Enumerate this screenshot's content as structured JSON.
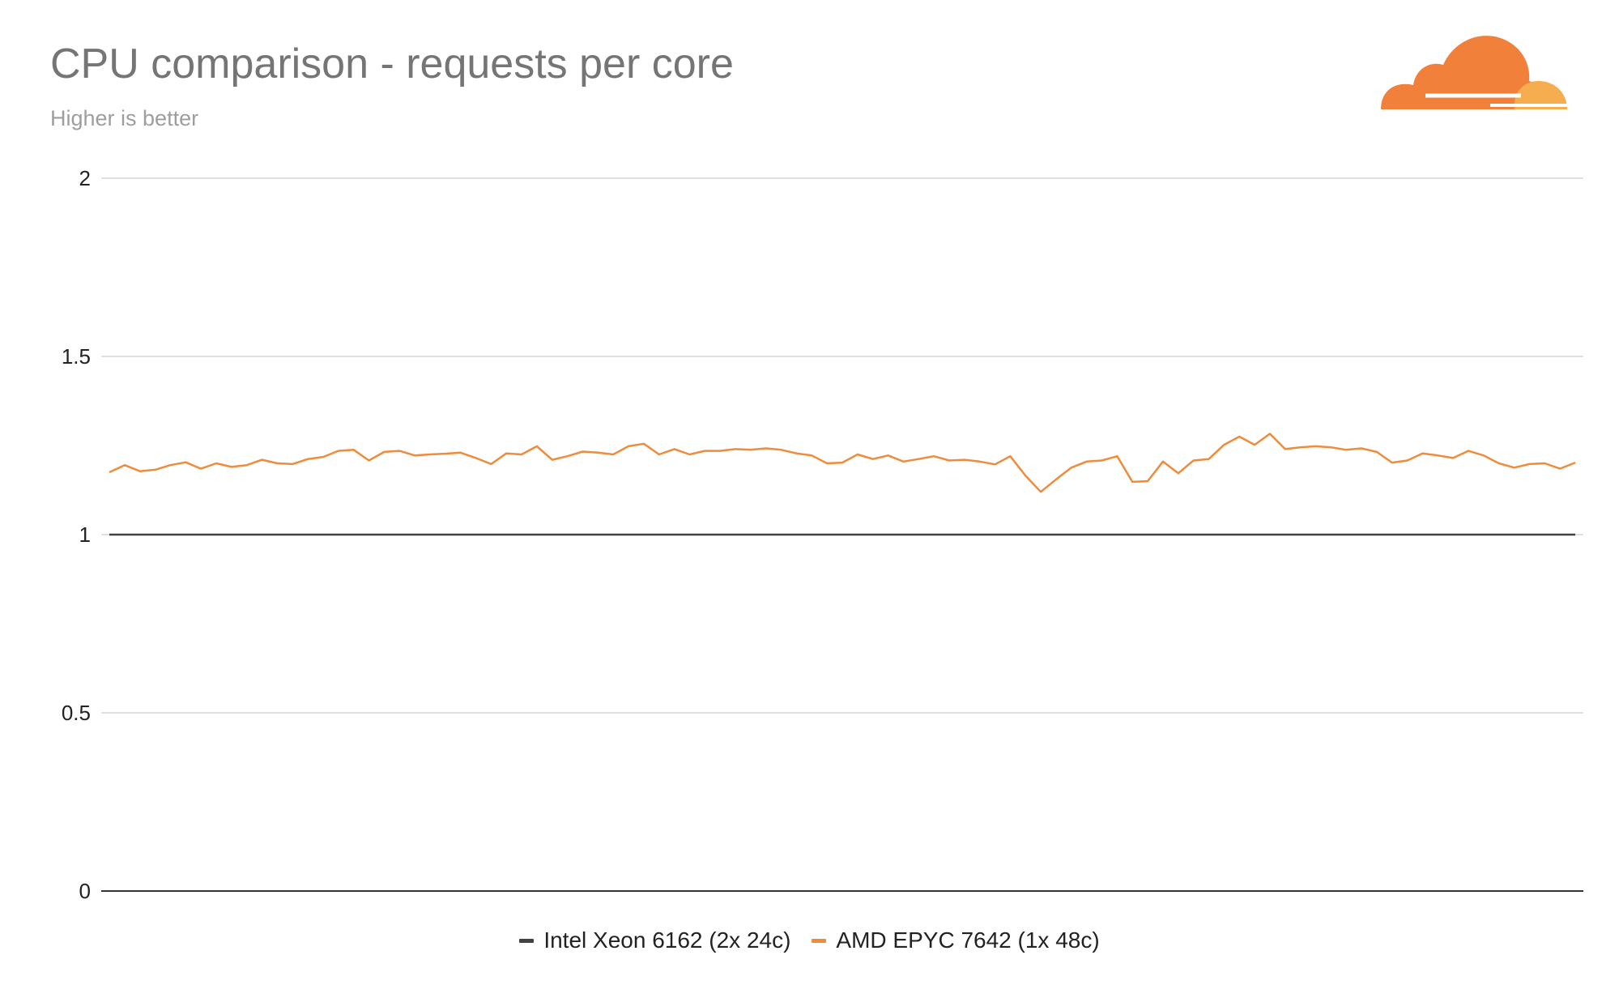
{
  "chart_data": {
    "type": "line",
    "title": "CPU comparison - requests per core",
    "subtitle": "Higher is better",
    "xlabel": "",
    "ylabel": "",
    "ylim": [
      0,
      2
    ],
    "yticks": [
      {
        "value": 0,
        "label": "0"
      },
      {
        "value": 0.5,
        "label": "0.5"
      },
      {
        "value": 1,
        "label": "1"
      },
      {
        "value": 1.5,
        "label": "1.5"
      },
      {
        "value": 2,
        "label": "2"
      }
    ],
    "grid": true,
    "legend_position": "bottom",
    "series": [
      {
        "name": "Intel Xeon 6162 (2x 24c)",
        "color": "#424242",
        "values": [
          1,
          1,
          1,
          1,
          1,
          1,
          1,
          1,
          1,
          1,
          1,
          1,
          1,
          1,
          1,
          1,
          1,
          1,
          1,
          1,
          1,
          1,
          1,
          1,
          1,
          1,
          1,
          1,
          1,
          1,
          1,
          1,
          1,
          1,
          1,
          1,
          1,
          1,
          1,
          1,
          1,
          1,
          1,
          1,
          1,
          1,
          1,
          1,
          1,
          1,
          1,
          1,
          1,
          1,
          1,
          1,
          1,
          1,
          1,
          1,
          1,
          1,
          1,
          1,
          1,
          1,
          1,
          1,
          1,
          1,
          1,
          1,
          1,
          1,
          1,
          1,
          1,
          1,
          1,
          1,
          1,
          1,
          1,
          1,
          1,
          1,
          1,
          1,
          1,
          1,
          1,
          1,
          1,
          1,
          1,
          1,
          1,
          1,
          1,
          1
        ]
      },
      {
        "name": "AMD EPYC 7642 (1x 48c)",
        "color": "#ef8c3c",
        "values": [
          1.175,
          1.195,
          1.178,
          1.182,
          1.195,
          1.203,
          1.185,
          1.2,
          1.19,
          1.195,
          1.21,
          1.2,
          1.198,
          1.212,
          1.218,
          1.235,
          1.238,
          1.208,
          1.232,
          1.235,
          1.222,
          1.225,
          1.227,
          1.23,
          1.215,
          1.198,
          1.228,
          1.225,
          1.248,
          1.21,
          1.22,
          1.233,
          1.23,
          1.225,
          1.248,
          1.255,
          1.225,
          1.24,
          1.225,
          1.235,
          1.235,
          1.24,
          1.238,
          1.242,
          1.238,
          1.228,
          1.222,
          1.2,
          1.202,
          1.225,
          1.212,
          1.222,
          1.205,
          1.212,
          1.22,
          1.208,
          1.21,
          1.205,
          1.197,
          1.22,
          1.165,
          1.12,
          1.155,
          1.188,
          1.205,
          1.208,
          1.22,
          1.148,
          1.15,
          1.205,
          1.172,
          1.208,
          1.212,
          1.252,
          1.275,
          1.252,
          1.283,
          1.24,
          1.245,
          1.248,
          1.245,
          1.238,
          1.242,
          1.232,
          1.202,
          1.208,
          1.228,
          1.222,
          1.215,
          1.235,
          1.222,
          1.2,
          1.188,
          1.198,
          1.2,
          1.185,
          1.202
        ]
      }
    ]
  }
}
